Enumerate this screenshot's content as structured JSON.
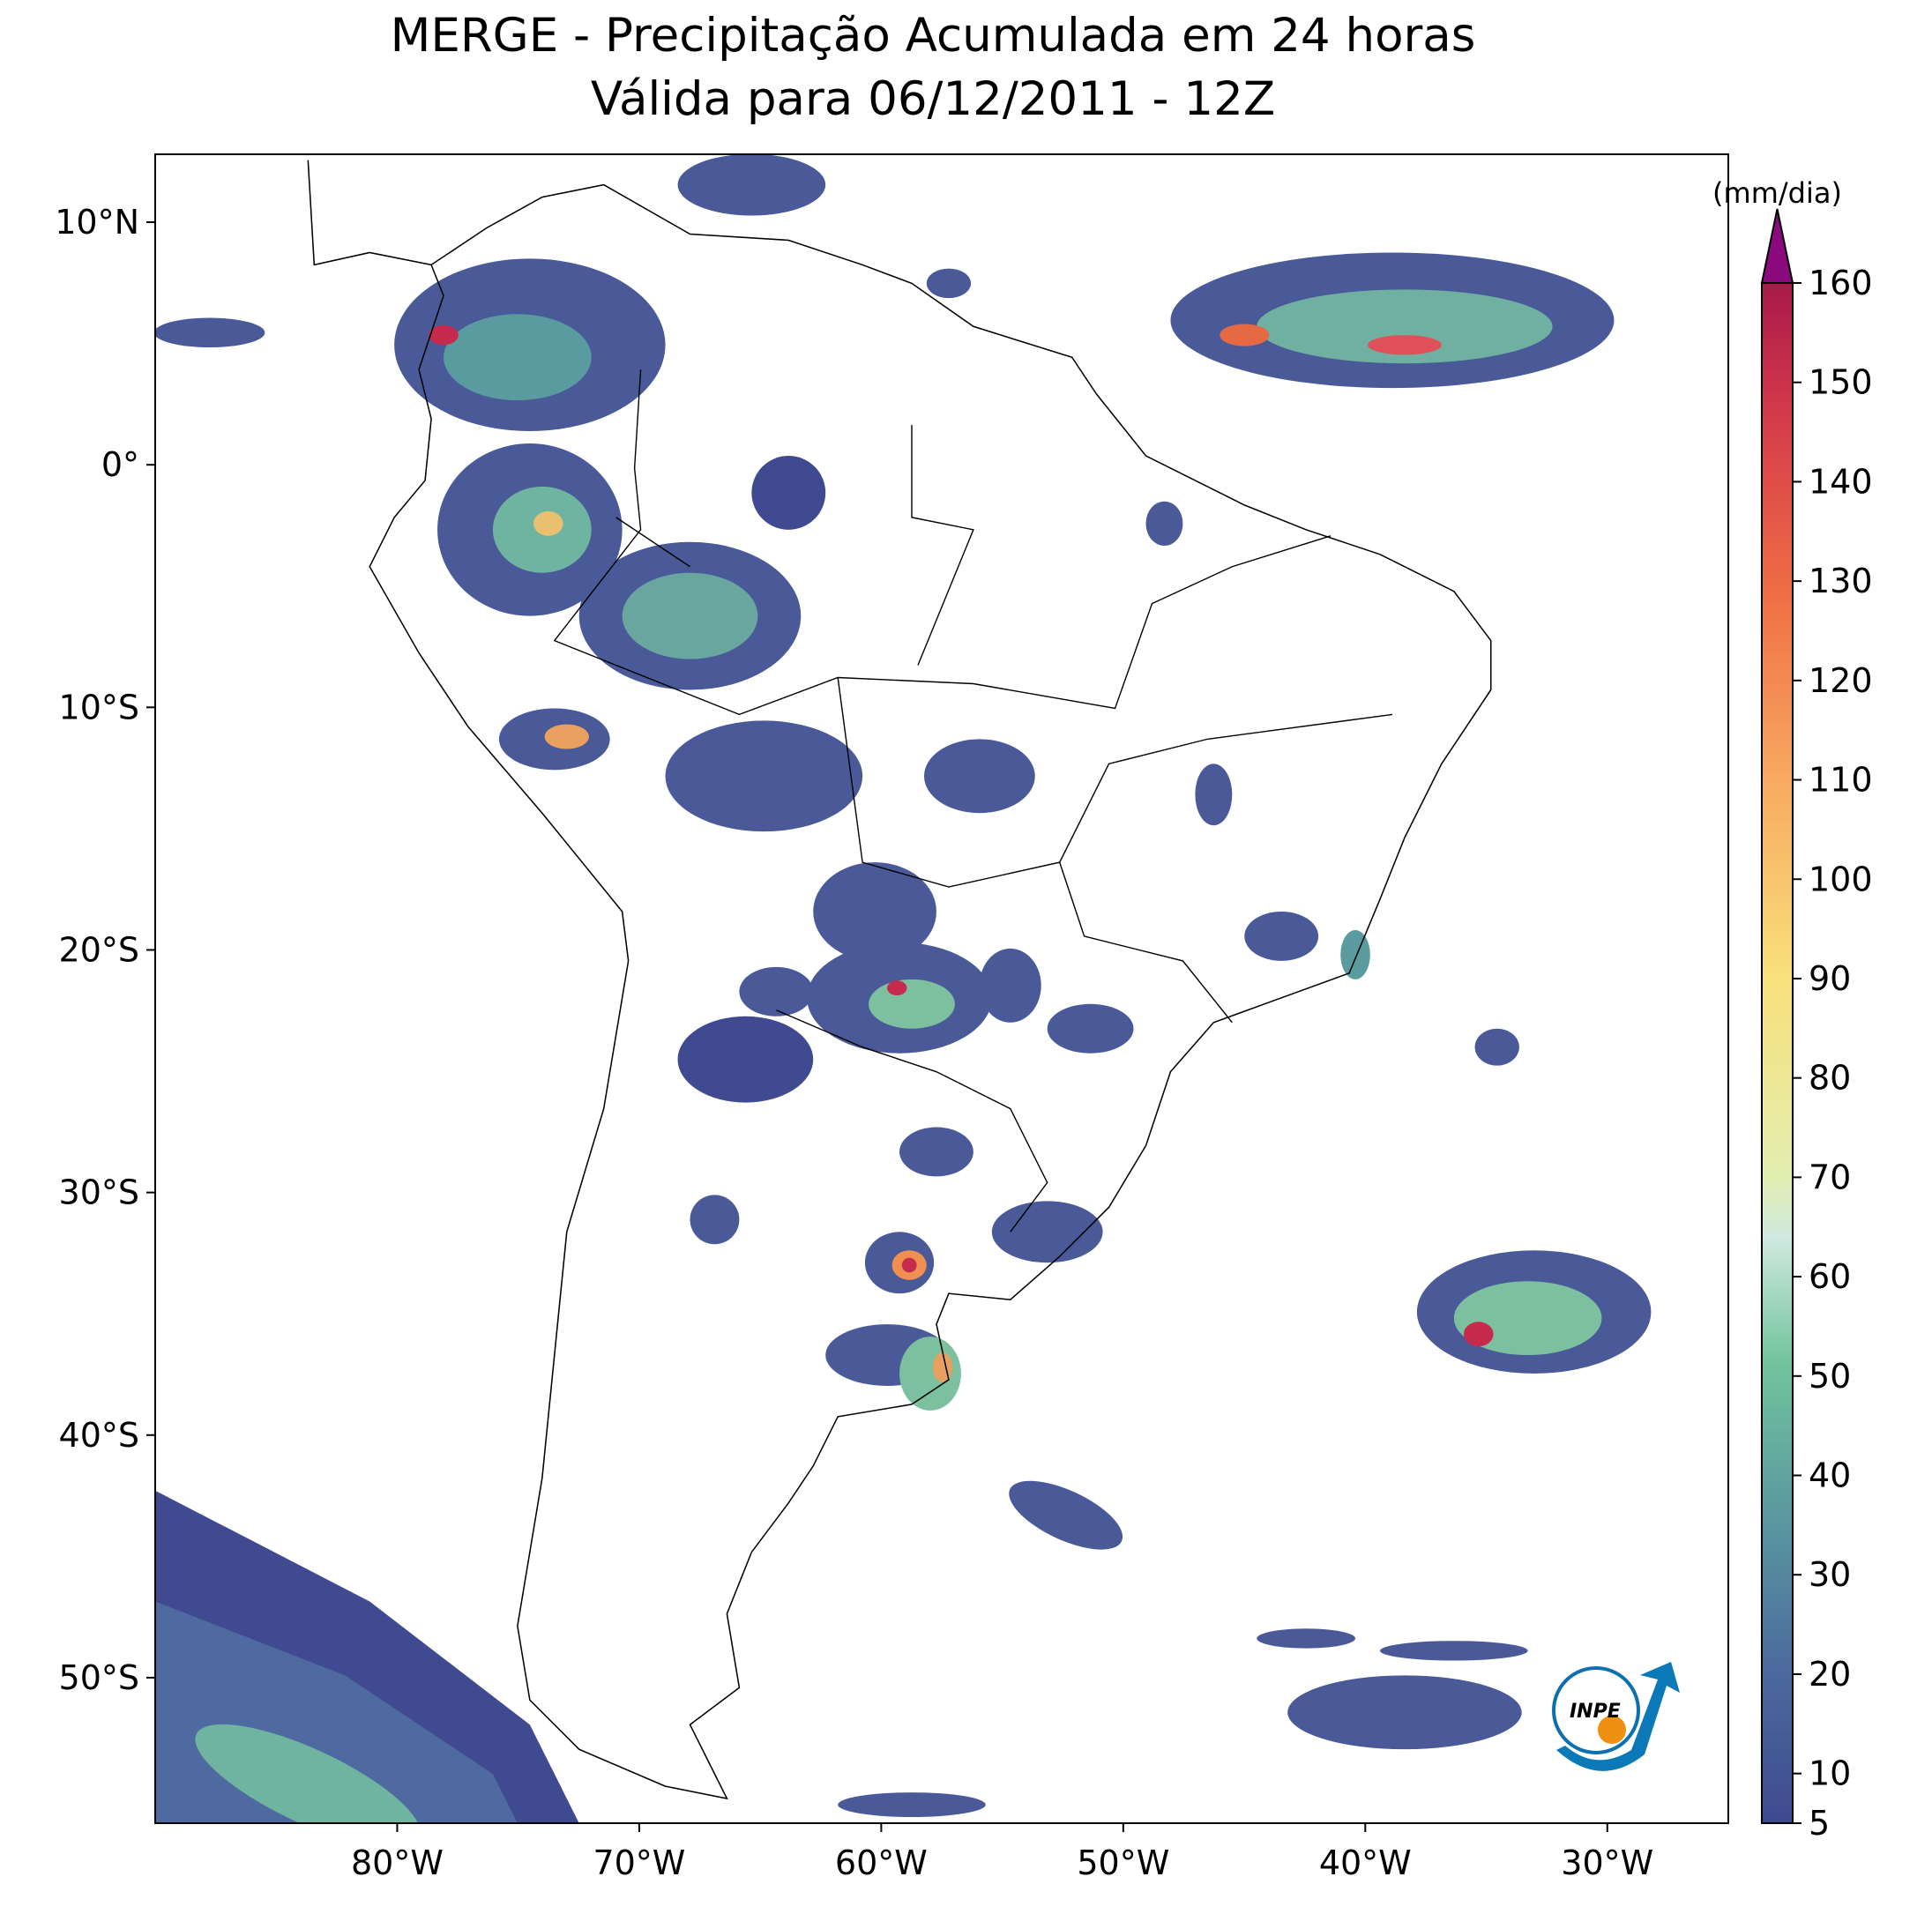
{
  "title": "MERGE - Precipitação Acumulada em 24 horas",
  "subtitle": "Válida para 06/12/2011 - 12Z",
  "map": {
    "lon_ticks": [
      {
        "value": -80,
        "label": "80°W"
      },
      {
        "value": -70,
        "label": "70°W"
      },
      {
        "value": -60,
        "label": "60°W"
      },
      {
        "value": -50,
        "label": "50°W"
      },
      {
        "value": -40,
        "label": "40°W"
      },
      {
        "value": -30,
        "label": "30°W"
      }
    ],
    "lat_ticks": [
      {
        "value": 10,
        "label": "10°N"
      },
      {
        "value": 0,
        "label": "0°"
      },
      {
        "value": -10,
        "label": "10°S"
      },
      {
        "value": -20,
        "label": "20°S"
      },
      {
        "value": -30,
        "label": "30°S"
      },
      {
        "value": -40,
        "label": "40°S"
      },
      {
        "value": -50,
        "label": "50°S"
      }
    ],
    "lonlim": [
      -90,
      -25
    ],
    "latlim": [
      12.8,
      -56
    ]
  },
  "colorbar": {
    "label": "(mm/dia)",
    "lim": [
      5,
      160
    ],
    "ticks": [
      5,
      10,
      20,
      30,
      40,
      50,
      60,
      70,
      80,
      90,
      100,
      110,
      120,
      130,
      140,
      150,
      160
    ]
  },
  "logo": {
    "text": "INPE"
  }
}
